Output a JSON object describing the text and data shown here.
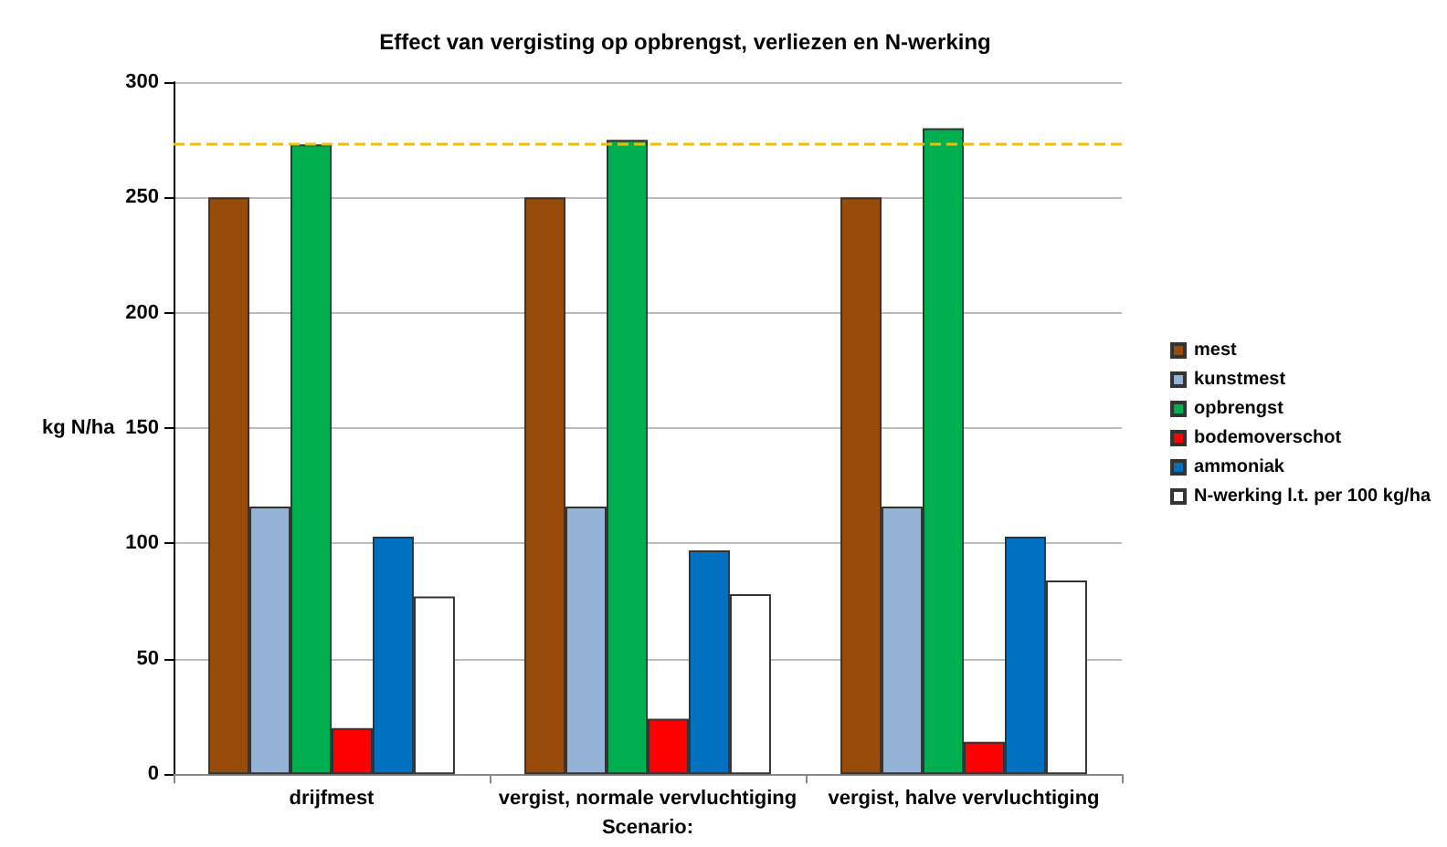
{
  "chart_data": {
    "type": "bar",
    "title": "Effect van vergisting op opbrengst, verliezen en N-werking",
    "xlabel": "Scenario:",
    "ylabel": "kg N/ha",
    "categories": [
      "drijfmest",
      "vergist, normale vervluchtiging",
      "vergist, halve vervluchtiging"
    ],
    "series": [
      {
        "name": "mest",
        "color": "#994c0a",
        "values": [
          250,
          250,
          250
        ]
      },
      {
        "name": "kunstmest",
        "color": "#95b3d7",
        "values": [
          116,
          116,
          116
        ]
      },
      {
        "name": "opbrengst",
        "color": "#00b050",
        "values": [
          273,
          275,
          280
        ]
      },
      {
        "name": "bodemoverschot",
        "color": "#ff0000",
        "values": [
          20,
          24,
          14
        ]
      },
      {
        "name": "ammoniak",
        "color": "#0070c0",
        "values": [
          103,
          97,
          103
        ]
      },
      {
        "name": "N-werking l.t. per 100 kg/ha",
        "color": "#ffffff",
        "values": [
          77,
          78,
          84
        ]
      }
    ],
    "ylim": [
      0,
      300
    ],
    "yticks": [
      0,
      50,
      100,
      150,
      200,
      250,
      300
    ],
    "grid": "y",
    "legend": "right",
    "ref_lines": [
      {
        "axis": "y",
        "value": 273,
        "color": "#f0c000",
        "line_style": "dashed"
      }
    ]
  }
}
